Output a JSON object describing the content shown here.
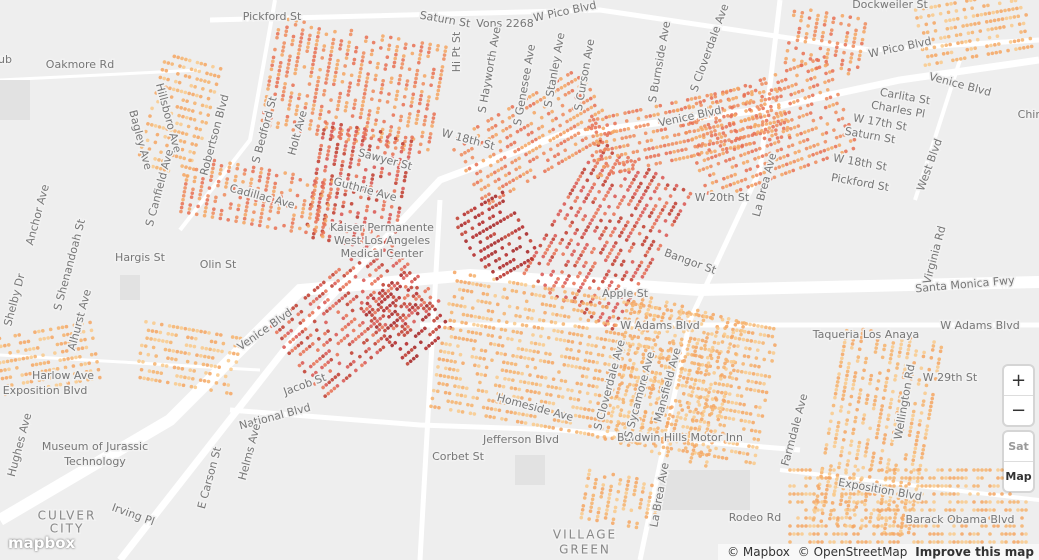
{
  "map": {
    "labels": [
      "Pickford St",
      "Saturn St",
      "Vons 2268",
      "W Pico Blvd",
      "Dockweiler St",
      "W Pico Blvd",
      "ub",
      "Oakmore Rd",
      "Hi Pt St",
      "S Hayworth Ave",
      "S Genesee Ave",
      "S Stanley Ave",
      "S Curson Ave",
      "S Burnside Ave",
      "S Cloverdale Ave",
      "Venice Blvd",
      "Hillsboro Ave",
      "Bagley Ave",
      "Robertson Blvd",
      "S Bedford St",
      "Holt Ave",
      "W 18th St",
      "Venice Blvd",
      "Chin",
      "Carlita St",
      "Charles Pl",
      "W 17th St",
      "Saturn St",
      "W 18th St",
      "Pickford St",
      "West Blvd",
      "S Canfield Ave",
      "Cadillac Ave",
      "Sawyer St",
      "Guthrie Ave",
      "Anchor Ave",
      "W 20th St",
      "La Brea Ave",
      "Kaiser Permanente",
      "West Los Angeles",
      "Medical Center",
      "Hargis St",
      "Olin St",
      "Virginia Rd",
      "S Shenandoah St",
      "Shelby Dr",
      "Apple St",
      "Santa Monica Fwy",
      "Bangor St",
      "Venice Blvd",
      "Alhurst Ave",
      "W Adams Blvd",
      "W Adams Blvd",
      "Taqueria Los Anaya",
      "Harlow Ave",
      "Exposition Blvd",
      "W 29th St",
      "Jacob St",
      "Wellington Rd",
      "National Blvd",
      "Hughes Ave",
      "Museum of Jurassic",
      "Technology",
      "Jefferson Blvd",
      "Baldwin Hills Motor Inn",
      "Helms Ave",
      "Corbet St",
      "E Carson St",
      "Exposition Blvd",
      "Irving Pl",
      "CULVER",
      "CITY",
      "Rodeo Rd",
      "La Brea Ave",
      "Barack Obama Blvd",
      "VILLAGE",
      "GREEN",
      "Farmdale Ave",
      "S Cloverdale Ave",
      "S Sycamore Ave",
      "Mansfield Ave",
      "Homeside Ave"
    ],
    "controls": {
      "zoom_in": "+",
      "zoom_out": "−",
      "layers": [
        "Sat",
        "Map"
      ]
    },
    "logo": "mapbox",
    "attribution": [
      "© Mapbox",
      "© OpenStreetMap",
      "Improve this map"
    ]
  }
}
